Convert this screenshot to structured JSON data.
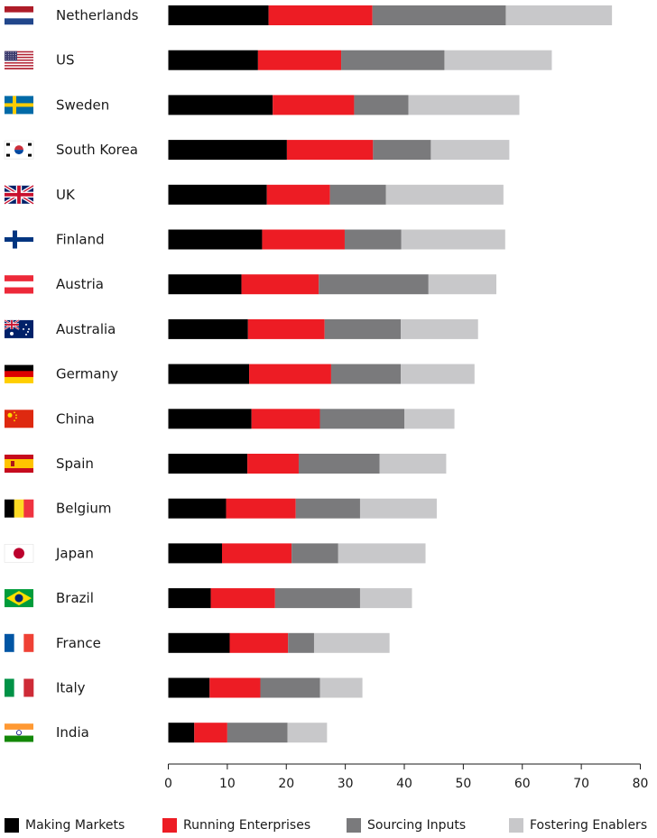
{
  "chart_data": {
    "type": "bar",
    "orientation": "horizontal",
    "stacked": true,
    "categories": [
      "Netherlands",
      "US",
      "Sweden",
      "South Korea",
      "UK",
      "Finland",
      "Austria",
      "Australia",
      "Germany",
      "China",
      "Spain",
      "Belgium",
      "Japan",
      "Brazil",
      "France",
      "Italy",
      "India"
    ],
    "flag_icons": [
      "netherlands-flag-icon",
      "us-flag-icon",
      "sweden-flag-icon",
      "south-korea-flag-icon",
      "uk-flag-icon",
      "finland-flag-icon",
      "austria-flag-icon",
      "australia-flag-icon",
      "germany-flag-icon",
      "china-flag-icon",
      "spain-flag-icon",
      "belgium-flag-icon",
      "japan-flag-icon",
      "brazil-flag-icon",
      "france-flag-icon",
      "italy-flag-icon",
      "india-flag-icon"
    ],
    "series": [
      {
        "name": "Making Markets",
        "color": "#000000",
        "values": [
          17.0,
          15.2,
          17.7,
          20.1,
          16.7,
          15.9,
          12.4,
          13.5,
          13.7,
          14.1,
          13.4,
          9.8,
          9.1,
          7.2,
          10.4,
          7.0,
          4.4
        ]
      },
      {
        "name": "Running Enterprises",
        "color": "#ed1c24",
        "values": [
          17.6,
          14.1,
          13.8,
          14.6,
          10.7,
          14.0,
          13.1,
          13.0,
          13.9,
          11.6,
          8.7,
          11.8,
          11.8,
          10.9,
          9.9,
          8.6,
          5.6
        ]
      },
      {
        "name": "Sourcing Inputs",
        "color": "#7a7a7c",
        "values": [
          22.6,
          17.5,
          9.2,
          9.8,
          9.5,
          9.6,
          18.6,
          12.9,
          11.8,
          14.3,
          13.7,
          10.9,
          7.9,
          14.4,
          4.4,
          10.1,
          10.2
        ]
      },
      {
        "name": "Fostering Enablers",
        "color": "#c8c8ca",
        "values": [
          18.0,
          18.2,
          18.8,
          13.3,
          19.9,
          17.6,
          11.5,
          13.1,
          12.5,
          8.5,
          11.3,
          13.0,
          14.8,
          8.8,
          12.8,
          7.2,
          6.7
        ]
      }
    ],
    "xlim": [
      0,
      80
    ],
    "xticks": [
      0,
      10,
      20,
      30,
      40,
      50,
      60,
      70,
      80
    ],
    "grid": false,
    "legend_position": "bottom"
  }
}
